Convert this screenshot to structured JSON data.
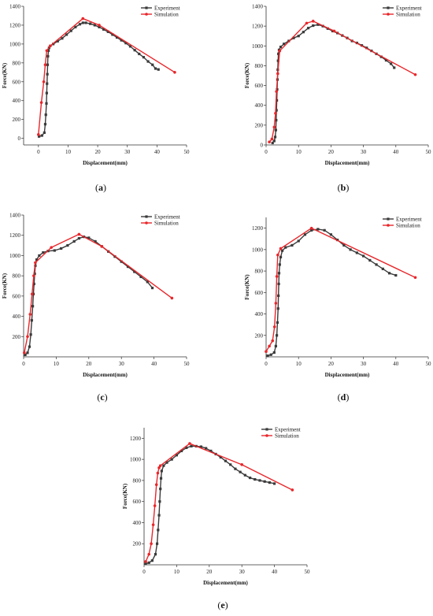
{
  "figure": {
    "colors": {
      "experiment": "#3a3a3a",
      "simulation": "#e8262a",
      "axis": "#333333"
    }
  },
  "chart_data": [
    {
      "id": "a",
      "caption": "(a)",
      "type": "line",
      "xlabel": "Displacement(mm)",
      "ylabel": "Force(KN)",
      "xlim": [
        -5,
        50
      ],
      "ylim": [
        -70,
        1400
      ],
      "xticks": [
        0,
        10,
        20,
        30,
        40,
        50
      ],
      "yticks": [
        0,
        200,
        400,
        600,
        800,
        1000,
        1200,
        1400
      ],
      "legend_position": "top-right",
      "series": [
        {
          "name": "Experiment",
          "marker": "square",
          "color": "#3a3a3a",
          "x": [
            0.2,
            1.2,
            2.0,
            2.3,
            2.5,
            2.7,
            2.8,
            2.9,
            3.0,
            3.1,
            3.2,
            3.4,
            3.6,
            4.0,
            5.0,
            6.5,
            8.0,
            9.5,
            11.0,
            12.5,
            14.0,
            15.0,
            16.0,
            17.5,
            19.0,
            20.5,
            22.0,
            23.5,
            25.0,
            26.5,
            28.0,
            29.5,
            31.0,
            32.5,
            34.0,
            35.5,
            37.0,
            38.5,
            39.5,
            40.5
          ],
          "y": [
            20,
            30,
            60,
            150,
            250,
            370,
            480,
            580,
            680,
            780,
            870,
            930,
            960,
            980,
            1000,
            1030,
            1060,
            1100,
            1140,
            1180,
            1210,
            1225,
            1225,
            1215,
            1200,
            1180,
            1155,
            1130,
            1100,
            1070,
            1040,
            1010,
            975,
            935,
            895,
            860,
            815,
            780,
            740,
            730
          ]
        },
        {
          "name": "Simulation",
          "marker": "circle",
          "color": "#e8262a",
          "x": [
            0,
            1.0,
            1.8,
            2.3,
            2.8,
            4.0,
            15.0,
            20.5,
            46.0
          ],
          "y": [
            40,
            380,
            600,
            780,
            930,
            980,
            1270,
            1200,
            700
          ]
        }
      ]
    },
    {
      "id": "b",
      "caption": "(b)",
      "type": "line",
      "xlabel": "Displacement(mm)",
      "ylabel": "Force(KN)",
      "xlim": [
        0,
        50
      ],
      "ylim": [
        0,
        1400
      ],
      "xticks": [
        0,
        10,
        20,
        30,
        40,
        50
      ],
      "yticks": [
        0,
        200,
        400,
        600,
        800,
        1000,
        1200,
        1400
      ],
      "legend_position": "top-right",
      "series": [
        {
          "name": "Experiment",
          "marker": "square",
          "color": "#3a3a3a",
          "x": [
            2.0,
            2.5,
            2.8,
            3.0,
            3.1,
            3.2,
            3.3,
            3.4,
            3.5,
            3.6,
            3.7,
            3.8,
            4.0,
            4.5,
            5.5,
            7.0,
            8.5,
            10.0,
            11.5,
            13.0,
            14.5,
            16.0,
            17.5,
            19.0,
            20.5,
            22.0,
            23.5,
            25.0,
            26.5,
            28.0,
            29.5,
            31.0,
            32.5,
            34.0,
            35.5,
            37.0,
            38.5,
            39.5
          ],
          "y": [
            20,
            40,
            80,
            150,
            250,
            350,
            450,
            560,
            660,
            760,
            850,
            920,
            960,
            990,
            1020,
            1050,
            1080,
            1100,
            1140,
            1180,
            1205,
            1215,
            1200,
            1175,
            1150,
            1130,
            1105,
            1080,
            1050,
            1030,
            1005,
            980,
            950,
            920,
            890,
            855,
            820,
            780
          ]
        },
        {
          "name": "Simulation",
          "marker": "circle",
          "color": "#e8262a",
          "x": [
            1.0,
            1.8,
            2.5,
            2.9,
            3.2,
            3.6,
            4.2,
            12.5,
            14.5,
            21.0,
            46.0
          ],
          "y": [
            30,
            60,
            180,
            320,
            540,
            720,
            950,
            1230,
            1250,
            1150,
            710
          ]
        }
      ]
    },
    {
      "id": "c",
      "caption": "(c)",
      "type": "line",
      "xlabel": "Displacement(mm)",
      "ylabel": "Force(KN)",
      "xlim": [
        0,
        50
      ],
      "ylim": [
        0,
        1400
      ],
      "xticks": [
        0,
        10,
        20,
        30,
        40,
        50
      ],
      "yticks": [
        200,
        400,
        600,
        800,
        1000,
        1200,
        1400
      ],
      "legend_position": "top-right",
      "series": [
        {
          "name": "Experiment",
          "marker": "square",
          "color": "#3a3a3a",
          "x": [
            0.5,
            1.2,
            1.8,
            2.2,
            2.5,
            2.8,
            3.0,
            3.2,
            3.4,
            3.6,
            4.0,
            4.8,
            6.0,
            7.5,
            9.5,
            11.5,
            13.5,
            15.5,
            17.0,
            18.5,
            20.0,
            22.0,
            24.0,
            26.0,
            28.0,
            30.0,
            32.0,
            34.0,
            36.0,
            38.0,
            39.5
          ],
          "y": [
            20,
            40,
            100,
            220,
            360,
            500,
            620,
            720,
            820,
            900,
            960,
            1000,
            1030,
            1045,
            1050,
            1070,
            1100,
            1140,
            1170,
            1185,
            1175,
            1140,
            1090,
            1040,
            990,
            940,
            890,
            840,
            790,
            740,
            680
          ]
        },
        {
          "name": "Simulation",
          "marker": "circle",
          "color": "#e8262a",
          "x": [
            0.2,
            1.2,
            2.0,
            2.6,
            3.1,
            3.6,
            8.5,
            17.0,
            24.0,
            45.5
          ],
          "y": [
            40,
            200,
            420,
            620,
            800,
            930,
            1080,
            1210,
            1090,
            580
          ]
        }
      ]
    },
    {
      "id": "d",
      "caption": "(d)",
      "type": "line",
      "xlabel": "Displacement(mm)",
      "ylabel": "Force(KN)",
      "xlim": [
        0,
        50
      ],
      "ylim": [
        0,
        1300
      ],
      "xticks": [
        0,
        10,
        20,
        30,
        40,
        50
      ],
      "yticks": [
        200,
        400,
        600,
        800,
        1000,
        1200
      ],
      "legend_position": "top-right",
      "series": [
        {
          "name": "Experiment",
          "marker": "square",
          "color": "#3a3a3a",
          "x": [
            0.5,
            1.5,
            2.5,
            3.0,
            3.3,
            3.5,
            3.7,
            3.8,
            3.9,
            4.0,
            4.2,
            4.5,
            5.0,
            6.0,
            8.0,
            10.0,
            12.0,
            14.0,
            16.0,
            18.0,
            20.0,
            22.0,
            24.0,
            26.0,
            28.0,
            30.0,
            32.0,
            34.0,
            36.0,
            38.0,
            40.0
          ],
          "y": [
            10,
            20,
            40,
            100,
            200,
            320,
            450,
            570,
            680,
            780,
            860,
            930,
            990,
            1020,
            1040,
            1080,
            1140,
            1180,
            1190,
            1180,
            1140,
            1090,
            1040,
            1000,
            970,
            940,
            900,
            860,
            820,
            780,
            760
          ]
        },
        {
          "name": "Simulation",
          "marker": "circle",
          "color": "#e8262a",
          "x": [
            0,
            1.0,
            2.0,
            2.6,
            3.0,
            3.3,
            3.6,
            4.5,
            14.0,
            46.0
          ],
          "y": [
            50,
            100,
            150,
            280,
            500,
            750,
            950,
            1010,
            1200,
            740
          ]
        }
      ]
    },
    {
      "id": "e",
      "caption": "(e)",
      "type": "line",
      "xlabel": "Displacement(mm)",
      "ylabel": "Force(KN)",
      "xlim": [
        0,
        50
      ],
      "ylim": [
        0,
        1300
      ],
      "xticks": [
        0,
        10,
        20,
        30,
        40,
        50
      ],
      "yticks": [
        200,
        400,
        600,
        800,
        1000,
        1200
      ],
      "legend_position": "top-right",
      "series": [
        {
          "name": "Experiment",
          "marker": "square",
          "color": "#3a3a3a",
          "x": [
            0.5,
            1.5,
            2.5,
            3.5,
            4.0,
            4.3,
            4.6,
            4.8,
            5.0,
            5.2,
            5.4,
            6.0,
            7.0,
            8.5,
            10.0,
            11.5,
            13.0,
            14.5,
            16.0,
            17.5,
            19.0,
            20.5,
            22.0,
            23.5,
            25.0,
            26.5,
            28.0,
            29.5,
            31.0,
            32.5,
            34.0,
            35.5,
            37.0,
            38.5,
            40.0
          ],
          "y": [
            10,
            20,
            40,
            100,
            200,
            330,
            470,
            600,
            720,
            820,
            890,
            940,
            970,
            1000,
            1040,
            1080,
            1110,
            1125,
            1125,
            1120,
            1105,
            1080,
            1050,
            1020,
            985,
            950,
            910,
            880,
            850,
            825,
            810,
            800,
            790,
            780,
            770
          ]
        },
        {
          "name": "Simulation",
          "marker": "circle",
          "color": "#e8262a",
          "x": [
            0.5,
            1.5,
            2.2,
            2.8,
            3.3,
            3.8,
            4.2,
            4.6,
            5.0,
            14.0,
            30.0,
            45.5
          ],
          "y": [
            30,
            100,
            200,
            380,
            560,
            760,
            870,
            920,
            940,
            1150,
            950,
            710
          ]
        }
      ]
    }
  ]
}
